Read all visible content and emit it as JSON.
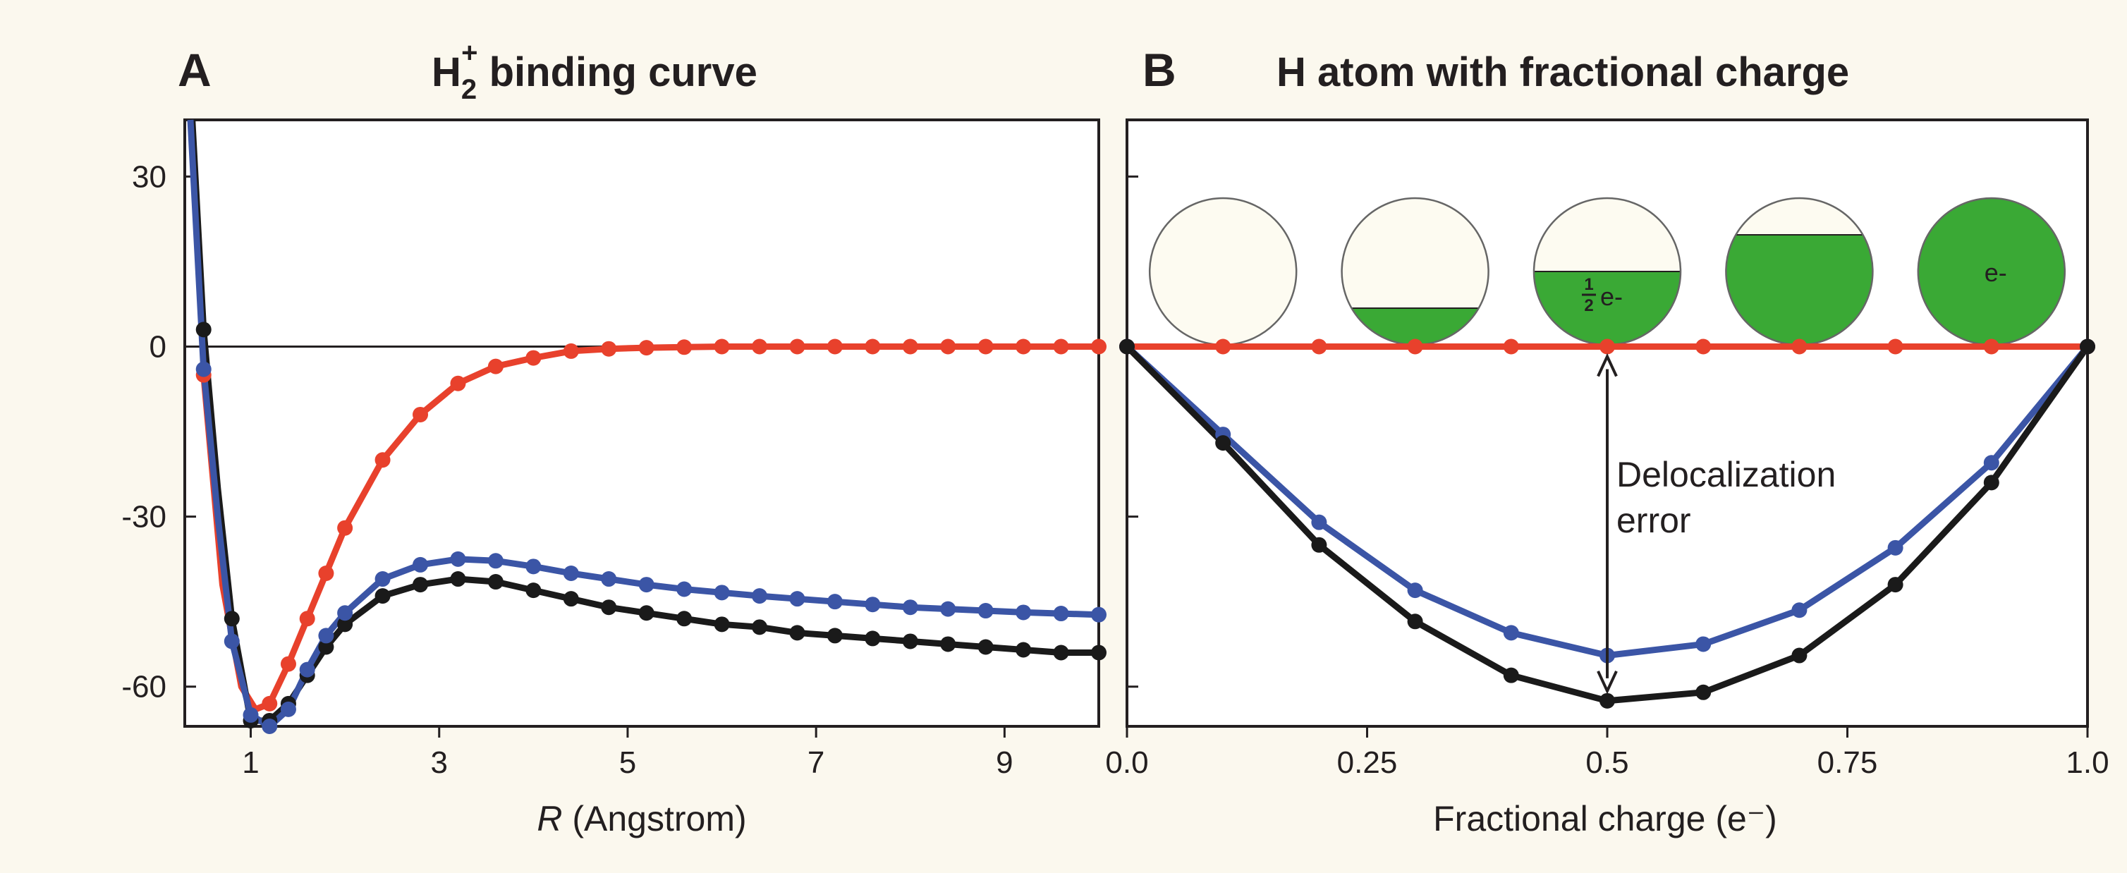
{
  "panel_a": {
    "letter": "A",
    "title_main": "H",
    "title_sub": "2",
    "title_sup": "+",
    "title_rest": " binding curve"
  },
  "panel_b": {
    "letter": "B",
    "title": "H atom with fractional charge",
    "annotation_line1": "Delocalization",
    "annotation_line2": "error",
    "bubble_labels": [
      "",
      "",
      "e-",
      "",
      "e-"
    ],
    "half_num": "1",
    "half_den": "2"
  },
  "colors": {
    "red": "#e8412c",
    "blue": "#3b55a6",
    "black": "#1a1a1a",
    "green": "#3aa935",
    "bubble_bg": "#fdfbf1",
    "frame": "#231f20"
  },
  "chart_data": [
    {
      "type": "line",
      "title": "H2+ binding curve",
      "xlabel_italic": "R",
      "xlabel_rest": " (Angstrom)",
      "xlim": [
        0.3,
        10.0
      ],
      "ylim": [
        -67,
        40
      ],
      "xticks": [
        1,
        3,
        5,
        7,
        9
      ],
      "yticks": [
        30,
        0,
        -30,
        -60
      ],
      "xtick_labels": [
        "1",
        "3",
        "5",
        "7",
        "9"
      ],
      "ytick_labels": [
        "30",
        "0",
        "-30",
        "-60"
      ],
      "reference_line_y": 0,
      "series": [
        {
          "color": "red",
          "marker_x": [
            0.5,
            1.2,
            1.4,
            1.6,
            1.8,
            2.0,
            2.4,
            2.8,
            3.2,
            3.6,
            4.0,
            4.4,
            4.8,
            5.2,
            5.6,
            6.0,
            6.4,
            6.8,
            7.2,
            7.6,
            8.0,
            8.4,
            8.8,
            9.2,
            9.6,
            10.0
          ],
          "marker_y": [
            -5,
            -63,
            -56,
            -48,
            -40,
            -32,
            -20,
            -12,
            -6.5,
            -3.5,
            -2,
            -0.8,
            -0.4,
            -0.2,
            -0.1,
            0,
            0,
            0,
            0,
            0,
            0,
            0,
            0,
            0,
            0,
            0
          ],
          "line_x": [
            0.5,
            0.7,
            0.9,
            1.05,
            1.2,
            1.4,
            1.6,
            1.8,
            2.0,
            2.4,
            2.8,
            3.2,
            3.6,
            4.0,
            4.4,
            4.8,
            5.2,
            5.6,
            6.0,
            10.0
          ],
          "line_y": [
            -5,
            -42,
            -60,
            -64,
            -63,
            -56,
            -48,
            -40,
            -32,
            -20,
            -12,
            -6.5,
            -3.5,
            -2,
            -0.8,
            -0.4,
            -0.2,
            -0.1,
            0,
            0
          ]
        },
        {
          "color": "black",
          "marker_x": [
            0.5,
            0.8,
            1.0,
            1.2,
            1.4,
            1.6,
            1.8,
            2.0,
            2.4,
            2.8,
            3.2,
            3.6,
            4.0,
            4.4,
            4.8,
            5.2,
            5.6,
            6.0,
            6.4,
            6.8,
            7.2,
            7.6,
            8.0,
            8.4,
            8.8,
            9.2,
            9.6,
            10.0
          ],
          "marker_y": [
            3,
            -48,
            -66,
            -66,
            -63,
            -58,
            -53,
            -49,
            -44,
            -42,
            -41,
            -41.5,
            -43,
            -44.5,
            -46,
            -47,
            -48,
            -49,
            -49.5,
            -50.5,
            -51,
            -51.5,
            -52,
            -52.5,
            -53,
            -53.5,
            -54,
            -54
          ],
          "line_x": [
            0.38,
            0.5,
            0.65,
            0.8,
            1.0,
            1.2,
            1.4,
            1.6,
            1.8,
            2.0,
            2.4,
            2.8,
            3.2,
            3.6,
            4.0,
            4.4,
            4.8,
            5.2,
            5.6,
            6.0,
            6.4,
            6.8,
            7.2,
            7.6,
            8.0,
            8.4,
            8.8,
            9.2,
            9.6,
            10.0
          ],
          "line_y": [
            40,
            3,
            -25,
            -48,
            -66,
            -66,
            -63,
            -58,
            -53,
            -49,
            -44,
            -42,
            -41,
            -41.5,
            -43,
            -44.5,
            -46,
            -47,
            -48,
            -49,
            -49.5,
            -50.5,
            -51,
            -51.5,
            -52,
            -52.5,
            -53,
            -53.5,
            -54,
            -54
          ]
        },
        {
          "color": "blue",
          "marker_x": [
            0.5,
            0.8,
            1.0,
            1.2,
            1.4,
            1.6,
            1.8,
            2.0,
            2.4,
            2.8,
            3.2,
            3.6,
            4.0,
            4.4,
            4.8,
            5.2,
            5.6,
            6.0,
            6.4,
            6.8,
            7.2,
            7.6,
            8.0,
            8.4,
            8.8,
            9.2,
            9.6,
            10.0
          ],
          "marker_y": [
            -4,
            -52,
            -65,
            -67,
            -64,
            -57,
            -51,
            -47,
            -41,
            -38.5,
            -37.5,
            -37.8,
            -38.8,
            -40,
            -41,
            -42,
            -42.8,
            -43.4,
            -44,
            -44.5,
            -45,
            -45.5,
            -46,
            -46.3,
            -46.6,
            -46.9,
            -47.1,
            -47.3
          ],
          "line_x": [
            0.36,
            0.5,
            0.65,
            0.8,
            1.0,
            1.2,
            1.4,
            1.6,
            1.8,
            2.0,
            2.4,
            2.8,
            3.2,
            3.6,
            4.0,
            4.4,
            4.8,
            5.2,
            5.6,
            6.0,
            6.4,
            6.8,
            7.2,
            7.6,
            8.0,
            8.4,
            8.8,
            9.2,
            9.6,
            10.0
          ],
          "line_y": [
            40,
            -4,
            -30,
            -52,
            -65,
            -67,
            -64,
            -57,
            -51,
            -47,
            -41,
            -38.5,
            -37.5,
            -37.8,
            -38.8,
            -40,
            -41,
            -42,
            -42.8,
            -43.4,
            -44,
            -44.5,
            -45,
            -45.5,
            -46,
            -46.3,
            -46.6,
            -46.9,
            -47.1,
            -47.3
          ]
        }
      ]
    },
    {
      "type": "line",
      "title": "H atom with fractional charge",
      "xlabel": "Fractional charge (e⁻)",
      "xlim": [
        0.0,
        1.0
      ],
      "ylim": [
        -67,
        40
      ],
      "xticks": [
        0.0,
        0.25,
        0.5,
        0.75,
        1.0
      ],
      "xtick_labels": [
        "0.0",
        "0.25",
        "0.5",
        "0.75",
        "1.0"
      ],
      "yticks": [
        30,
        0,
        -30,
        -60
      ],
      "x": [
        0.0,
        0.1,
        0.2,
        0.3,
        0.4,
        0.5,
        0.6,
        0.7,
        0.8,
        0.9,
        1.0
      ],
      "series": [
        {
          "color": "red",
          "values": [
            0,
            0,
            0,
            0,
            0,
            0,
            0,
            0,
            0,
            0,
            0
          ]
        },
        {
          "color": "blue",
          "values": [
            0,
            -15.5,
            -31,
            -43,
            -50.5,
            -54.5,
            -52.5,
            -46.5,
            -35.5,
            -20.5,
            0
          ]
        },
        {
          "color": "black",
          "values": [
            0,
            -17,
            -35,
            -48.5,
            -58,
            -62.5,
            -61,
            -54.5,
            -42,
            -24,
            0
          ]
        }
      ],
      "arrow": {
        "x": 0.5,
        "y_top": 0,
        "y_bottom": -62.5
      },
      "bubble_fill_fractions": [
        0,
        0.25,
        0.5,
        0.75,
        1.0
      ]
    }
  ]
}
